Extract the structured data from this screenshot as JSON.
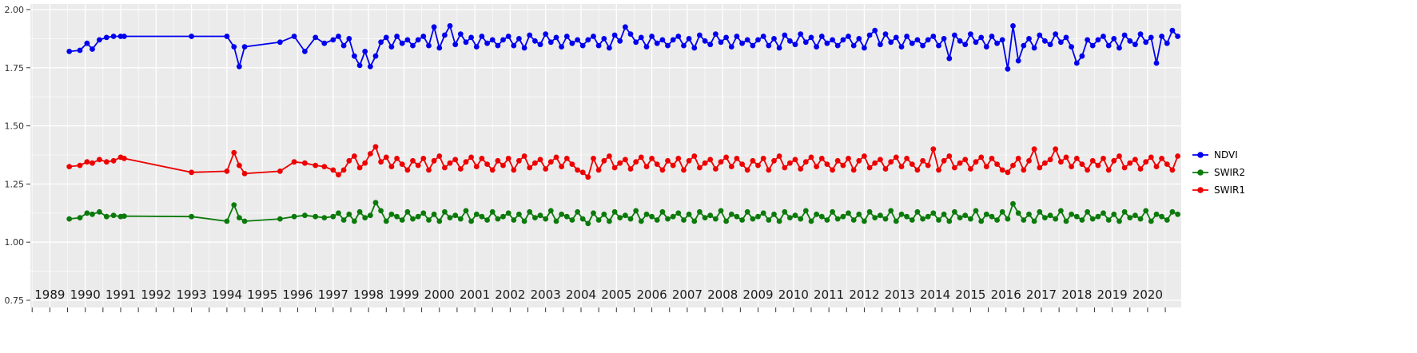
{
  "chart_data": {
    "type": "line",
    "title": "",
    "xlabel": "",
    "ylabel": "",
    "grid": true,
    "panel_background": "#EBEBEB",
    "grid_color": "#FFFFFF",
    "legend": {
      "position": "right"
    },
    "x_axis": {
      "range": [
        1988.45,
        2020.95
      ],
      "tick_values": [
        1989,
        1990,
        1991,
        1992,
        1993,
        1994,
        1995,
        1996,
        1997,
        1998,
        1999,
        2000,
        2001,
        2002,
        2003,
        2004,
        2005,
        2006,
        2007,
        2008,
        2009,
        2010,
        2011,
        2012,
        2013,
        2014,
        2015,
        2016,
        2017,
        2018,
        2019,
        2020
      ],
      "tick_labels": [
        "1989",
        "1990",
        "1991",
        "1992",
        "1993",
        "1994",
        "1995",
        "1996",
        "1997",
        "1998",
        "1999",
        "2000",
        "2001",
        "2002",
        "2003",
        "2004",
        "2005",
        "2006",
        "2007",
        "2008",
        "2009",
        "2010",
        "2011",
        "2012",
        "2013",
        "2014",
        "2015",
        "2016",
        "2017",
        "2018",
        "2019",
        "2020"
      ]
    },
    "y_axis": {
      "range": [
        0.75,
        2.0
      ],
      "tick_values": [
        0.75,
        1.0,
        1.25,
        1.5,
        1.75,
        2.0
      ],
      "tick_labels": [
        "0.75",
        "1.00",
        "1.25",
        "1.50",
        "1.75",
        "2.00"
      ],
      "minor_values": [
        0.875,
        1.125,
        1.375,
        1.625,
        1.875
      ]
    },
    "x": [
      1989.55,
      1989.85,
      1990.05,
      1990.2,
      1990.4,
      1990.6,
      1990.8,
      1991.0,
      1991.1,
      1993.0,
      1994.0,
      1994.2,
      1994.35,
      1994.5,
      1995.5,
      1995.9,
      1996.2,
      1996.5,
      1996.75,
      1997.0,
      1997.15,
      1997.3,
      1997.45,
      1997.6,
      1997.75,
      1997.9,
      1998.05,
      1998.2,
      1998.35,
      1998.5,
      1998.65,
      1998.8,
      1998.95,
      1999.1,
      1999.25,
      1999.4,
      1999.55,
      1999.7,
      1999.85,
      2000.0,
      2000.15,
      2000.3,
      2000.45,
      2000.6,
      2000.75,
      2000.9,
      2001.05,
      2001.2,
      2001.35,
      2001.5,
      2001.65,
      2001.8,
      2001.95,
      2002.1,
      2002.25,
      2002.4,
      2002.55,
      2002.7,
      2002.85,
      2003.0,
      2003.15,
      2003.3,
      2003.45,
      2003.6,
      2003.75,
      2003.9,
      2004.05,
      2004.2,
      2004.35,
      2004.5,
      2004.65,
      2004.8,
      2004.95,
      2005.1,
      2005.25,
      2005.4,
      2005.55,
      2005.7,
      2005.85,
      2006.0,
      2006.15,
      2006.3,
      2006.45,
      2006.6,
      2006.75,
      2006.9,
      2007.05,
      2007.2,
      2007.35,
      2007.5,
      2007.65,
      2007.8,
      2007.95,
      2008.1,
      2008.25,
      2008.4,
      2008.55,
      2008.7,
      2008.85,
      2009.0,
      2009.15,
      2009.3,
      2009.45,
      2009.6,
      2009.75,
      2009.9,
      2010.05,
      2010.2,
      2010.35,
      2010.5,
      2010.65,
      2010.8,
      2010.95,
      2011.1,
      2011.25,
      2011.4,
      2011.55,
      2011.7,
      2011.85,
      2012.0,
      2012.15,
      2012.3,
      2012.45,
      2012.6,
      2012.75,
      2012.9,
      2013.05,
      2013.2,
      2013.35,
      2013.5,
      2013.65,
      2013.8,
      2013.95,
      2014.1,
      2014.25,
      2014.4,
      2014.55,
      2014.7,
      2014.85,
      2015.0,
      2015.15,
      2015.3,
      2015.45,
      2015.6,
      2015.75,
      2015.9,
      2016.05,
      2016.2,
      2016.35,
      2016.5,
      2016.65,
      2016.8,
      2016.95,
      2017.1,
      2017.25,
      2017.4,
      2017.55,
      2017.7,
      2017.85,
      2018.0,
      2018.15,
      2018.3,
      2018.45,
      2018.6,
      2018.75,
      2018.9,
      2019.05,
      2019.2,
      2019.35,
      2019.5,
      2019.65,
      2019.8,
      2019.95,
      2020.1,
      2020.25,
      2020.4,
      2020.55,
      2020.7,
      2020.85
    ],
    "series": [
      {
        "name": "NDVI",
        "color": "#0000EE",
        "values": [
          1.82,
          1.825,
          1.855,
          1.83,
          1.87,
          1.88,
          1.885,
          1.885,
          1.885,
          1.885,
          1.885,
          1.84,
          1.755,
          1.84,
          1.86,
          1.885,
          1.82,
          1.88,
          1.855,
          1.87,
          1.885,
          1.845,
          1.875,
          1.8,
          1.76,
          1.82,
          1.755,
          1.8,
          1.86,
          1.88,
          1.84,
          1.885,
          1.855,
          1.87,
          1.845,
          1.87,
          1.885,
          1.845,
          1.925,
          1.835,
          1.89,
          1.93,
          1.85,
          1.895,
          1.86,
          1.88,
          1.84,
          1.885,
          1.855,
          1.87,
          1.845,
          1.87,
          1.885,
          1.845,
          1.875,
          1.835,
          1.89,
          1.865,
          1.85,
          1.895,
          1.86,
          1.88,
          1.84,
          1.885,
          1.855,
          1.87,
          1.845,
          1.87,
          1.885,
          1.845,
          1.875,
          1.835,
          1.89,
          1.865,
          1.925,
          1.895,
          1.86,
          1.88,
          1.84,
          1.885,
          1.855,
          1.87,
          1.845,
          1.87,
          1.885,
          1.845,
          1.875,
          1.835,
          1.89,
          1.865,
          1.85,
          1.895,
          1.86,
          1.88,
          1.84,
          1.885,
          1.855,
          1.87,
          1.845,
          1.87,
          1.885,
          1.845,
          1.875,
          1.835,
          1.89,
          1.865,
          1.85,
          1.895,
          1.86,
          1.88,
          1.84,
          1.885,
          1.855,
          1.87,
          1.845,
          1.87,
          1.885,
          1.845,
          1.875,
          1.835,
          1.89,
          1.91,
          1.85,
          1.895,
          1.86,
          1.88,
          1.84,
          1.885,
          1.855,
          1.87,
          1.845,
          1.87,
          1.885,
          1.845,
          1.875,
          1.79,
          1.89,
          1.865,
          1.85,
          1.895,
          1.86,
          1.88,
          1.84,
          1.885,
          1.855,
          1.87,
          1.745,
          1.93,
          1.78,
          1.845,
          1.875,
          1.835,
          1.89,
          1.865,
          1.85,
          1.895,
          1.86,
          1.88,
          1.84,
          1.77,
          1.8,
          1.87,
          1.845,
          1.87,
          1.885,
          1.845,
          1.875,
          1.835,
          1.89,
          1.865,
          1.85,
          1.895,
          1.86,
          1.88,
          1.77,
          1.885,
          1.855,
          1.91,
          1.885
        ]
      },
      {
        "name": "SWIR2",
        "color": "#0B7A0B",
        "values": [
          1.1,
          1.105,
          1.125,
          1.12,
          1.13,
          1.11,
          1.115,
          1.11,
          1.112,
          1.11,
          1.09,
          1.16,
          1.105,
          1.09,
          1.1,
          1.11,
          1.115,
          1.11,
          1.105,
          1.11,
          1.125,
          1.095,
          1.12,
          1.09,
          1.13,
          1.105,
          1.115,
          1.17,
          1.135,
          1.09,
          1.12,
          1.11,
          1.095,
          1.13,
          1.1,
          1.11,
          1.125,
          1.095,
          1.12,
          1.09,
          1.13,
          1.105,
          1.115,
          1.1,
          1.135,
          1.09,
          1.12,
          1.11,
          1.095,
          1.13,
          1.1,
          1.11,
          1.125,
          1.095,
          1.12,
          1.09,
          1.13,
          1.105,
          1.115,
          1.1,
          1.135,
          1.09,
          1.12,
          1.11,
          1.095,
          1.13,
          1.1,
          1.08,
          1.125,
          1.095,
          1.12,
          1.09,
          1.13,
          1.105,
          1.115,
          1.1,
          1.135,
          1.09,
          1.12,
          1.11,
          1.095,
          1.13,
          1.1,
          1.11,
          1.125,
          1.095,
          1.12,
          1.09,
          1.13,
          1.105,
          1.115,
          1.1,
          1.135,
          1.09,
          1.12,
          1.11,
          1.095,
          1.13,
          1.1,
          1.11,
          1.125,
          1.095,
          1.12,
          1.09,
          1.13,
          1.105,
          1.115,
          1.1,
          1.135,
          1.09,
          1.12,
          1.11,
          1.095,
          1.13,
          1.1,
          1.11,
          1.125,
          1.095,
          1.12,
          1.09,
          1.13,
          1.105,
          1.115,
          1.1,
          1.135,
          1.09,
          1.12,
          1.11,
          1.095,
          1.13,
          1.1,
          1.11,
          1.125,
          1.095,
          1.12,
          1.09,
          1.13,
          1.105,
          1.115,
          1.1,
          1.135,
          1.09,
          1.12,
          1.11,
          1.095,
          1.13,
          1.1,
          1.165,
          1.125,
          1.095,
          1.12,
          1.09,
          1.13,
          1.105,
          1.115,
          1.1,
          1.135,
          1.09,
          1.12,
          1.11,
          1.095,
          1.13,
          1.1,
          1.11,
          1.125,
          1.095,
          1.12,
          1.09,
          1.13,
          1.105,
          1.115,
          1.1,
          1.135,
          1.09,
          1.12,
          1.11,
          1.095,
          1.13,
          1.12
        ]
      },
      {
        "name": "SWIR1",
        "color": "#EE0000",
        "values": [
          1.325,
          1.33,
          1.345,
          1.34,
          1.355,
          1.345,
          1.35,
          1.365,
          1.36,
          1.3,
          1.305,
          1.385,
          1.33,
          1.295,
          1.305,
          1.345,
          1.34,
          1.33,
          1.325,
          1.31,
          1.29,
          1.31,
          1.35,
          1.37,
          1.32,
          1.34,
          1.38,
          1.41,
          1.345,
          1.365,
          1.325,
          1.36,
          1.335,
          1.31,
          1.35,
          1.33,
          1.36,
          1.31,
          1.35,
          1.37,
          1.32,
          1.34,
          1.355,
          1.315,
          1.345,
          1.365,
          1.325,
          1.36,
          1.335,
          1.31,
          1.35,
          1.33,
          1.36,
          1.31,
          1.35,
          1.37,
          1.32,
          1.34,
          1.355,
          1.315,
          1.345,
          1.365,
          1.325,
          1.36,
          1.335,
          1.31,
          1.3,
          1.28,
          1.36,
          1.31,
          1.35,
          1.37,
          1.32,
          1.34,
          1.355,
          1.315,
          1.345,
          1.365,
          1.325,
          1.36,
          1.335,
          1.31,
          1.35,
          1.33,
          1.36,
          1.31,
          1.35,
          1.37,
          1.32,
          1.34,
          1.355,
          1.315,
          1.345,
          1.365,
          1.325,
          1.36,
          1.335,
          1.31,
          1.35,
          1.33,
          1.36,
          1.31,
          1.35,
          1.37,
          1.32,
          1.34,
          1.355,
          1.315,
          1.345,
          1.365,
          1.325,
          1.36,
          1.335,
          1.31,
          1.35,
          1.33,
          1.36,
          1.31,
          1.35,
          1.37,
          1.32,
          1.34,
          1.355,
          1.315,
          1.345,
          1.365,
          1.325,
          1.36,
          1.335,
          1.31,
          1.35,
          1.33,
          1.4,
          1.31,
          1.35,
          1.37,
          1.32,
          1.34,
          1.355,
          1.315,
          1.345,
          1.365,
          1.325,
          1.36,
          1.335,
          1.31,
          1.3,
          1.33,
          1.36,
          1.31,
          1.35,
          1.4,
          1.32,
          1.34,
          1.355,
          1.4,
          1.345,
          1.365,
          1.325,
          1.36,
          1.335,
          1.31,
          1.35,
          1.33,
          1.36,
          1.31,
          1.35,
          1.37,
          1.32,
          1.34,
          1.355,
          1.315,
          1.345,
          1.365,
          1.325,
          1.36,
          1.335,
          1.31,
          1.37
        ]
      }
    ]
  }
}
